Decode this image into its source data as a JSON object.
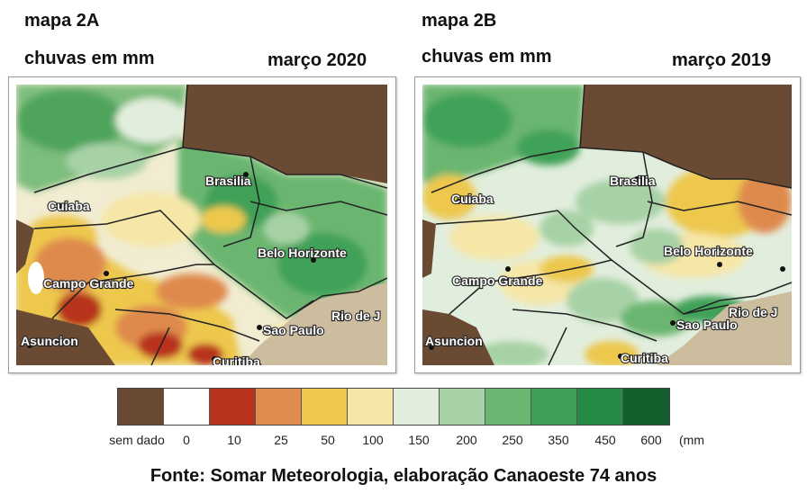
{
  "map_a": {
    "id_label": "mapa 2A",
    "subtitle": "chuvas em mm",
    "period": "março 2020",
    "cities": [
      "Cuiaba",
      "Brasilia",
      "Belo Horizonte",
      "Campo Grande",
      "Sao Paulo",
      "Rio de J",
      "Asuncion",
      "Curitiba"
    ]
  },
  "map_b": {
    "id_label": "mapa 2B",
    "subtitle": "chuvas em mm",
    "period": "março 2019",
    "cities": [
      "Cuiaba",
      "Brasilia",
      "Belo Horizonte",
      "Campo Grande",
      "Sao Paulo",
      "Rio de J",
      "Asuncion",
      "Curitiba"
    ]
  },
  "legend": {
    "unit": "(mm",
    "bins": [
      {
        "label": "sem dado",
        "color": "#6b4a33"
      },
      {
        "label": "0",
        "color": "#ffffff"
      },
      {
        "label": "10",
        "color": "#b8321e"
      },
      {
        "label": "25",
        "color": "#df8a4e"
      },
      {
        "label": "50",
        "color": "#edc84d"
      },
      {
        "label": "100",
        "color": "#f6e7a7"
      },
      {
        "label": "150",
        "color": "#e2eedd"
      },
      {
        "label": "200",
        "color": "#a7d1a6"
      },
      {
        "label": "250",
        "color": "#6bb670"
      },
      {
        "label": "350",
        "color": "#3fa158"
      },
      {
        "label": "450",
        "color": "#268a47"
      },
      {
        "label": "600",
        "color": "#145e2e"
      }
    ]
  },
  "source": "Fonte: Somar Meteorologia, elaboração Canaoeste 74 anos"
}
